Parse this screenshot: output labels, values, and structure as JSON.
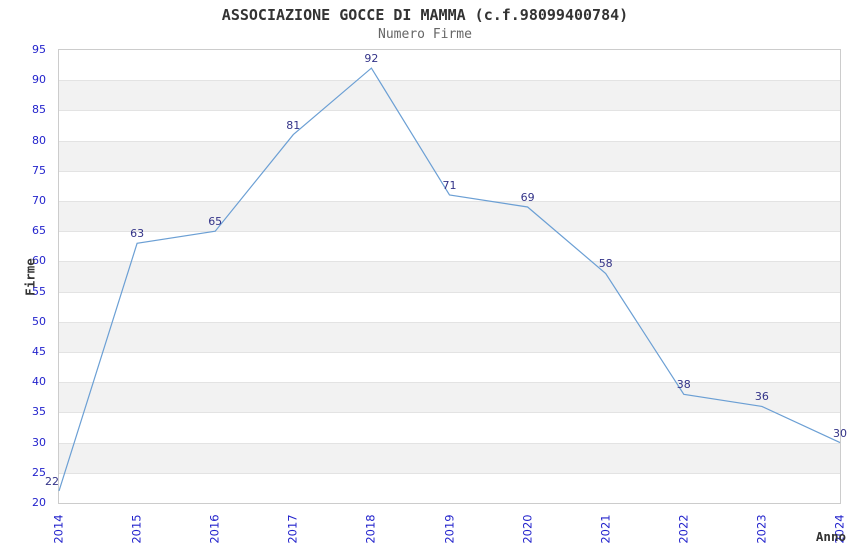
{
  "chart_data": {
    "type": "line",
    "title": "ASSOCIAZIONE GOCCE DI MAMMA (c.f.98099400784)",
    "subtitle": "Numero Firme",
    "xlabel": "Anno",
    "ylabel": "Firme",
    "categories": [
      "2014",
      "2015",
      "2016",
      "2017",
      "2018",
      "2019",
      "2020",
      "2021",
      "2022",
      "2023",
      "2024"
    ],
    "values": [
      22,
      63,
      65,
      81,
      92,
      71,
      69,
      58,
      38,
      36,
      30
    ],
    "data_labels": [
      "22",
      "63",
      "65",
      "81",
      "92",
      "71",
      "69",
      "58",
      "38",
      "36",
      "30"
    ],
    "yticks": [
      "95",
      "90",
      "85",
      "80",
      "75",
      "70",
      "65",
      "60",
      "55",
      "50",
      "45",
      "40",
      "35",
      "30",
      "25",
      "20"
    ],
    "ylim": [
      20,
      95
    ],
    "ytick_step": 5,
    "grid": "horizontal-alternating-bands",
    "legend": "none",
    "colors": {
      "line": "#6b9fd4",
      "tick_label": "#2323cc",
      "data_label": "#333388",
      "title": "#333333",
      "subtitle": "#666666",
      "axis_title": "#333333",
      "band": "#f2f2f2",
      "gridline": "#e3e3e3",
      "plot_border": "#cccccc",
      "background": "#ffffff"
    }
  }
}
